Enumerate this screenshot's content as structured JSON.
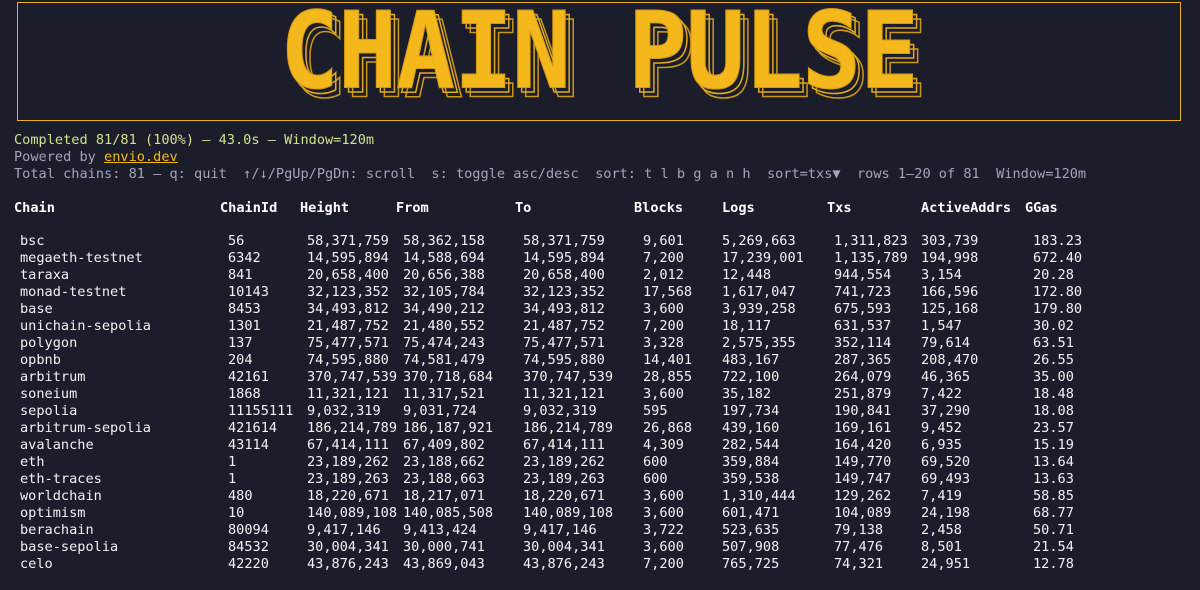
{
  "banner": {
    "title": "CHAIN PULSE",
    "color": "#f5b81c"
  },
  "status": {
    "progress": "Completed 81/81 (100%) — 43.0s — Window=120m",
    "powered_prefix": "Powered by ",
    "powered_link": "envio.dev",
    "help": "Total chains: 81 — q: quit  ↑/↓/PgUp/PgDn: scroll  s: toggle asc/desc  sort: t l b g a n h  sort=txs▼  rows 1–20 of 81  Window=120m"
  },
  "table": {
    "columns": [
      "Chain",
      "ChainId",
      "Height",
      "From",
      "To",
      "Blocks",
      "Logs",
      "Txs",
      "ActiveAddrs",
      "GGas"
    ],
    "rows": [
      [
        "bsc",
        "56",
        "58,371,759",
        "58,362,158",
        "58,371,759",
        "9,601",
        "5,269,663",
        "1,311,823",
        "303,739",
        "183.23"
      ],
      [
        "megaeth-testnet",
        "6342",
        "14,595,894",
        "14,588,694",
        "14,595,894",
        "7,200",
        "17,239,001",
        "1,135,789",
        "194,998",
        "672.40"
      ],
      [
        "taraxa",
        "841",
        "20,658,400",
        "20,656,388",
        "20,658,400",
        "2,012",
        "12,448",
        "944,554",
        "3,154",
        "20.28"
      ],
      [
        "monad-testnet",
        "10143",
        "32,123,352",
        "32,105,784",
        "32,123,352",
        "17,568",
        "1,617,047",
        "741,723",
        "166,596",
        "172.80"
      ],
      [
        "base",
        "8453",
        "34,493,812",
        "34,490,212",
        "34,493,812",
        "3,600",
        "3,939,258",
        "675,593",
        "125,168",
        "179.80"
      ],
      [
        "unichain-sepolia",
        "1301",
        "21,487,752",
        "21,480,552",
        "21,487,752",
        "7,200",
        "18,117",
        "631,537",
        "1,547",
        "30.02"
      ],
      [
        "polygon",
        "137",
        "75,477,571",
        "75,474,243",
        "75,477,571",
        "3,328",
        "2,575,355",
        "352,114",
        "79,614",
        "63.51"
      ],
      [
        "opbnb",
        "204",
        "74,595,880",
        "74,581,479",
        "74,595,880",
        "14,401",
        "483,167",
        "287,365",
        "208,470",
        "26.55"
      ],
      [
        "arbitrum",
        "42161",
        "370,747,539",
        "370,718,684",
        "370,747,539",
        "28,855",
        "722,100",
        "264,079",
        "46,365",
        "35.00"
      ],
      [
        "soneium",
        "1868",
        "11,321,121",
        "11,317,521",
        "11,321,121",
        "3,600",
        "35,182",
        "251,879",
        "7,422",
        "18.48"
      ],
      [
        "sepolia",
        "11155111",
        "9,032,319",
        "9,031,724",
        "9,032,319",
        "595",
        "197,734",
        "190,841",
        "37,290",
        "18.08"
      ],
      [
        "arbitrum-sepolia",
        "421614",
        "186,214,789",
        "186,187,921",
        "186,214,789",
        "26,868",
        "439,160",
        "169,161",
        "9,452",
        "23.57"
      ],
      [
        "avalanche",
        "43114",
        "67,414,111",
        "67,409,802",
        "67,414,111",
        "4,309",
        "282,544",
        "164,420",
        "6,935",
        "15.19"
      ],
      [
        "eth",
        "1",
        "23,189,262",
        "23,188,662",
        "23,189,262",
        "600",
        "359,884",
        "149,770",
        "69,520",
        "13.64"
      ],
      [
        "eth-traces",
        "1",
        "23,189,263",
        "23,188,663",
        "23,189,263",
        "600",
        "359,538",
        "149,747",
        "69,493",
        "13.63"
      ],
      [
        "worldchain",
        "480",
        "18,220,671",
        "18,217,071",
        "18,220,671",
        "3,600",
        "1,310,444",
        "129,262",
        "7,419",
        "58.85"
      ],
      [
        "optimism",
        "10",
        "140,089,108",
        "140,085,508",
        "140,089,108",
        "3,600",
        "601,471",
        "104,089",
        "24,198",
        "68.77"
      ],
      [
        "berachain",
        "80094",
        "9,417,146",
        "9,413,424",
        "9,417,146",
        "3,722",
        "523,635",
        "79,138",
        "2,458",
        "50.71"
      ],
      [
        "base-sepolia",
        "84532",
        "30,004,341",
        "30,000,741",
        "30,004,341",
        "3,600",
        "507,908",
        "77,476",
        "8,501",
        "21.54"
      ],
      [
        "celo",
        "42220",
        "43,876,243",
        "43,869,043",
        "43,876,243",
        "7,200",
        "765,725",
        "74,321",
        "24,951",
        "12.78"
      ]
    ]
  }
}
